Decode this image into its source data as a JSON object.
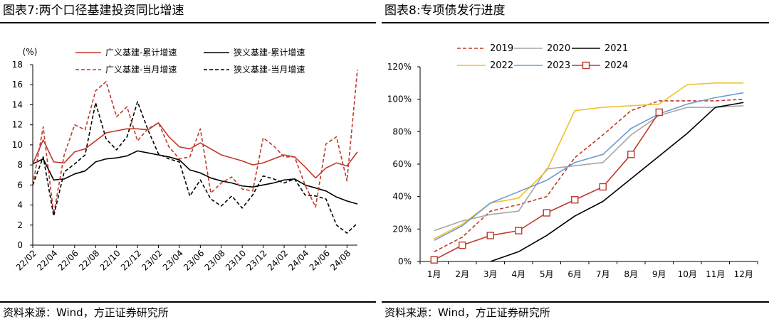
{
  "chart_data": [
    {
      "type": "line",
      "title": "图表7:两个口径基建投资同比增速",
      "source": "资料来源：Wind，方正证券研究所",
      "ylabel": "(%)",
      "ylim": [
        0,
        18
      ],
      "yticks": [
        0,
        2,
        4,
        6,
        8,
        10,
        12,
        14,
        16,
        18
      ],
      "x_tick_labels": [
        "22/02",
        "22/04",
        "22/06",
        "22/08",
        "22/10",
        "22/12",
        "23/02",
        "23/04",
        "23/06",
        "23/08",
        "23/10",
        "23/12",
        "24/02",
        "24/04",
        "24/06",
        "24/08"
      ],
      "x_tick_every": 2,
      "legend": "top",
      "series": [
        {
          "name": "广义基建-累计增速",
          "color": "#c0392b",
          "dash": "solid",
          "values": [
            8.1,
            10.5,
            8.3,
            8.2,
            9.3,
            9.6,
            10.4,
            11.2,
            11.4,
            11.6,
            11.6,
            11.5,
            12.2,
            10.8,
            9.8,
            9.6,
            10.2,
            9.6,
            9.0,
            8.7,
            8.4,
            8.0,
            8.2,
            8.6,
            9.0,
            8.8,
            7.8,
            6.7,
            7.7,
            8.2,
            7.9,
            9.3
          ]
        },
        {
          "name": "狭义基建-累计增速",
          "color": "#000000",
          "dash": "solid",
          "values": [
            8.1,
            8.6,
            6.5,
            6.6,
            7.1,
            7.4,
            8.3,
            8.6,
            8.7,
            8.9,
            9.4,
            9.2,
            9.0,
            8.8,
            8.5,
            7.5,
            7.2,
            6.7,
            6.4,
            6.2,
            5.9,
            5.8,
            6.0,
            6.2,
            6.5,
            6.6,
            6.0,
            5.7,
            5.4,
            4.8,
            4.4,
            4.1
          ]
        },
        {
          "name": "广义基建-当月增速",
          "color": "#c0392b",
          "dash": "dashed",
          "values": [
            6.0,
            11.8,
            3.1,
            9.0,
            12.0,
            11.5,
            15.4,
            16.3,
            12.8,
            13.8,
            10.4,
            11.6,
            12.2,
            9.8,
            8.6,
            8.8,
            11.6,
            5.2,
            6.2,
            6.8,
            5.6,
            5.4,
            10.7,
            9.9,
            8.8,
            8.8,
            6.0,
            3.8,
            10.1,
            10.8,
            6.4,
            17.5
          ]
        },
        {
          "name": "狭义基建-当月增速",
          "color": "#000000",
          "dash": "dashed",
          "values": [
            6.0,
            8.8,
            2.9,
            7.3,
            8.1,
            9.0,
            14.2,
            10.6,
            9.5,
            10.8,
            14.3,
            11.5,
            9.1,
            8.6,
            8.3,
            4.9,
            6.5,
            4.6,
            3.9,
            4.9,
            3.7,
            5.0,
            6.9,
            6.6,
            6.2,
            6.6,
            5.0,
            4.9,
            4.6,
            2.0,
            1.2,
            2.2
          ]
        }
      ]
    },
    {
      "type": "line",
      "title": "图表8:专项债发行进度",
      "source": "资料来源：Wind，方正证券研究所",
      "categories": [
        "1月",
        "2月",
        "3月",
        "4月",
        "5月",
        "6月",
        "7月",
        "8月",
        "9月",
        "10月",
        "11月",
        "12月"
      ],
      "ylim": [
        0,
        120
      ],
      "yticks": [
        0,
        20,
        40,
        60,
        80,
        100,
        120
      ],
      "y_unit": "%",
      "legend": "top",
      "series": [
        {
          "name": "2019",
          "color": "#c0392b",
          "dash": "dashed",
          "values": [
            6,
            15,
            31,
            35,
            40,
            64,
            78,
            93,
            99,
            99,
            99,
            100
          ]
        },
        {
          "name": "2020",
          "color": "#a6a6a6",
          "dash": "solid",
          "values": [
            19,
            25,
            29,
            31,
            57,
            59,
            61,
            78,
            90,
            95,
            95,
            96
          ]
        },
        {
          "name": "2021",
          "color": "#000000",
          "dash": "solid",
          "values": [
            null,
            null,
            0,
            6,
            16,
            28,
            37,
            51,
            65,
            79,
            95,
            98
          ]
        },
        {
          "name": "2022",
          "color": "#f2c12e",
          "dash": "solid",
          "values": [
            14,
            23,
            36,
            39,
            56,
            93,
            95,
            96,
            97,
            109,
            110,
            110
          ]
        },
        {
          "name": "2023",
          "color": "#6f9bd1",
          "dash": "solid",
          "values": [
            13,
            22,
            36,
            43,
            50,
            61,
            66,
            82,
            91,
            97,
            101,
            104
          ]
        },
        {
          "name": "2024",
          "color": "#c0392b",
          "dash": "solid",
          "marker": "square",
          "values": [
            1,
            10,
            16,
            19,
            30,
            38,
            46,
            66,
            92,
            null,
            null,
            null
          ]
        }
      ]
    }
  ]
}
